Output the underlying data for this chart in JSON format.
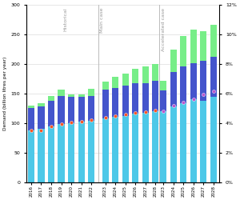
{
  "light_blue": [
    88,
    90,
    94,
    98,
    100,
    102,
    104,
    108,
    110,
    112,
    116,
    118,
    120,
    120,
    128,
    134,
    140,
    138,
    144
  ],
  "dark_blue": [
    38,
    38,
    44,
    48,
    44,
    42,
    42,
    48,
    50,
    52,
    52,
    50,
    52,
    35,
    58,
    62,
    62,
    68,
    68
  ],
  "green": [
    4,
    6,
    8,
    10,
    5,
    5,
    12,
    14,
    18,
    20,
    24,
    28,
    28,
    17,
    38,
    52,
    56,
    50,
    54
  ],
  "orange_dot_y": [
    88,
    88,
    94,
    99,
    101,
    103,
    105,
    109,
    112,
    115,
    118,
    119,
    121,
    null,
    null,
    null,
    null,
    null,
    null
  ],
  "purple_dot_y": [
    null,
    null,
    null,
    null,
    null,
    null,
    null,
    null,
    null,
    null,
    null,
    null,
    null,
    120,
    130,
    135,
    141,
    148,
    154
  ],
  "colors": {
    "light_blue": "#4DC8E8",
    "dark_blue": "#4455CC",
    "green": "#77EE88",
    "orange": "#FF5522",
    "purple": "#BB55CC",
    "section_line": "#BBBBBB",
    "bg": "#FFFFFF",
    "grid": "#DDDDDD"
  },
  "ylim": [
    0,
    300
  ],
  "yticks": [
    0,
    50,
    100,
    150,
    200,
    250,
    300
  ],
  "ytick_right_labels": [
    "0%",
    "2%",
    "4%",
    "6%",
    "8%",
    "10%",
    "12%"
  ],
  "ylabel": "Demand (billion litres per year)",
  "bar_width": 0.65
}
